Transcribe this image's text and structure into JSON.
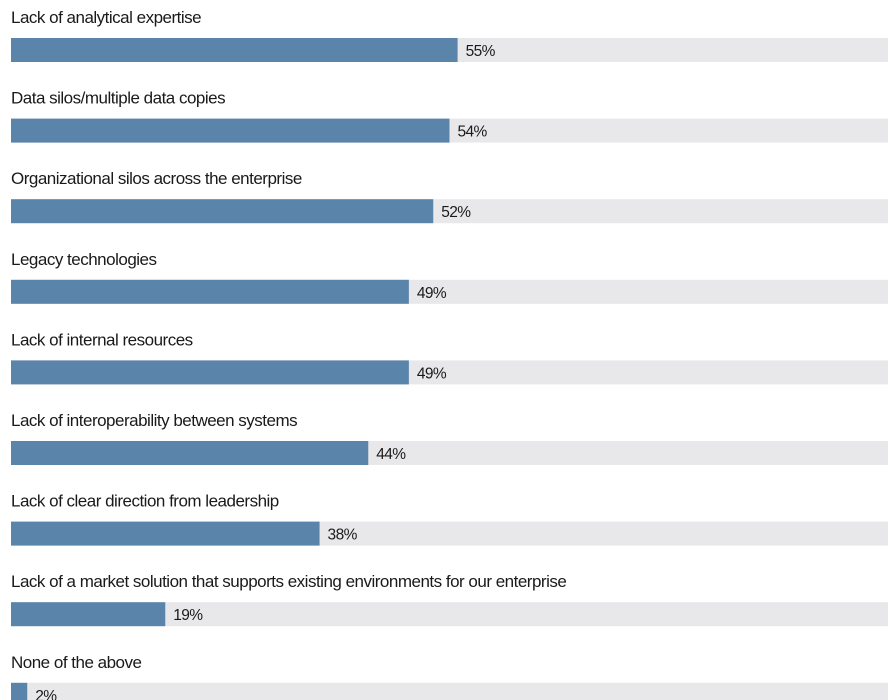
{
  "chart_data": {
    "type": "bar",
    "orientation": "horizontal",
    "categories": [
      "Lack of analytical expertise",
      "Data silos/multiple data copies",
      "Organizational silos across the enterprise",
      "Legacy technologies",
      "Lack of internal resources",
      "Lack of interoperability between systems",
      "Lack of clear direction from leadership",
      "Lack of a market solution that supports existing environments for our enterprise",
      "None of the above"
    ],
    "values": [
      55,
      54,
      52,
      49,
      49,
      44,
      38,
      19,
      2
    ],
    "value_labels": [
      "55%",
      "54%",
      "52%",
      "49%",
      "49%",
      "44%",
      "38%",
      "19%",
      "2%"
    ],
    "xlim": [
      0,
      100
    ],
    "unit": "%",
    "grid": false,
    "colors": {
      "bar": "#5b84aa",
      "track": "#e8e8eb",
      "text": "#1a1a1a"
    }
  }
}
